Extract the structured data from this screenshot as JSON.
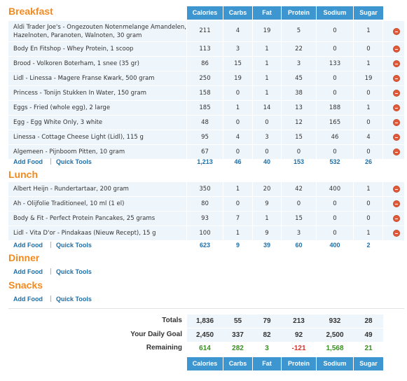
{
  "columns": [
    "Calories",
    "Carbs",
    "Fat",
    "Protein",
    "Sodium",
    "Sugar"
  ],
  "links": {
    "add_food": "Add Food",
    "quick_tools": "Quick Tools",
    "sep": "|"
  },
  "meals": [
    {
      "title": "Breakfast",
      "items": [
        {
          "food": "Aldi Trader Joe's - Ongezouten Notenmelange Amandelen, Hazelnoten, Paranoten, Walnoten, 30 gram",
          "vals": [
            "211",
            "4",
            "19",
            "5",
            "0",
            "1"
          ]
        },
        {
          "food": "Body En Fitshop - Whey Protein, 1 scoop",
          "vals": [
            "113",
            "3",
            "1",
            "22",
            "0",
            "0"
          ]
        },
        {
          "food": "Brood - Volkoren Boterham, 1 snee (35 gr)",
          "vals": [
            "86",
            "15",
            "1",
            "3",
            "133",
            "1"
          ]
        },
        {
          "food": "Lidl - Linessa - Magere Franse Kwark, 500 gram",
          "vals": [
            "250",
            "19",
            "1",
            "45",
            "0",
            "19"
          ]
        },
        {
          "food": "Princess - Tonijn Stukken In Water, 150 gram",
          "vals": [
            "158",
            "0",
            "1",
            "38",
            "0",
            "0"
          ]
        },
        {
          "food": "Eggs - Fried (whole egg), 2 large",
          "vals": [
            "185",
            "1",
            "14",
            "13",
            "188",
            "1"
          ]
        },
        {
          "food": "Egg - Egg White Only, 3 white",
          "vals": [
            "48",
            "0",
            "0",
            "12",
            "165",
            "0"
          ]
        },
        {
          "food": "Linessa - Cottage Cheese Light (Lidl), 115 g",
          "vals": [
            "95",
            "4",
            "3",
            "15",
            "46",
            "4"
          ]
        },
        {
          "food": "Algemeen - Pijnboom Pitten, 10 gram",
          "vals": [
            "67",
            "0",
            "0",
            "0",
            "0",
            "0"
          ]
        }
      ],
      "totals": [
        "1,213",
        "46",
        "40",
        "153",
        "532",
        "26"
      ]
    },
    {
      "title": "Lunch",
      "items": [
        {
          "food": "Albert Heijn - Rundertartaar, 200 gram",
          "vals": [
            "350",
            "1",
            "20",
            "42",
            "400",
            "1"
          ]
        },
        {
          "food": "Ah - Olijfolie Traditioneel, 10 ml (1 el)",
          "vals": [
            "80",
            "0",
            "9",
            "0",
            "0",
            "0"
          ]
        },
        {
          "food": "Body & Fit - Perfect Protein Pancakes, 25 grams",
          "vals": [
            "93",
            "7",
            "1",
            "15",
            "0",
            "0"
          ]
        },
        {
          "food": "Lidl - Vita D'or - Pindakaas (Nieuw Recept), 15 g",
          "vals": [
            "100",
            "1",
            "9",
            "3",
            "0",
            "1"
          ]
        }
      ],
      "totals": [
        "623",
        "9",
        "39",
        "60",
        "400",
        "2"
      ]
    },
    {
      "title": "Dinner",
      "items": [],
      "totals": []
    },
    {
      "title": "Snacks",
      "items": [],
      "totals": []
    }
  ],
  "summary": {
    "totals_label": "Totals",
    "totals": [
      "1,836",
      "55",
      "79",
      "213",
      "932",
      "28"
    ],
    "goal_label": "Your Daily Goal",
    "goal": [
      "2,450",
      "337",
      "82",
      "92",
      "2,500",
      "49"
    ],
    "remaining_label": "Remaining",
    "remaining": [
      "614",
      "282",
      "3",
      "-121",
      "1,568",
      "21"
    ],
    "remaining_status": [
      "pos",
      "pos",
      "pos",
      "neg",
      "pos",
      "pos"
    ]
  },
  "colors": {
    "accent": "#f38a1e",
    "header": "#3d96cf",
    "link": "#1e6fa8",
    "positive": "#3b8e22",
    "negative": "#d6322a"
  }
}
